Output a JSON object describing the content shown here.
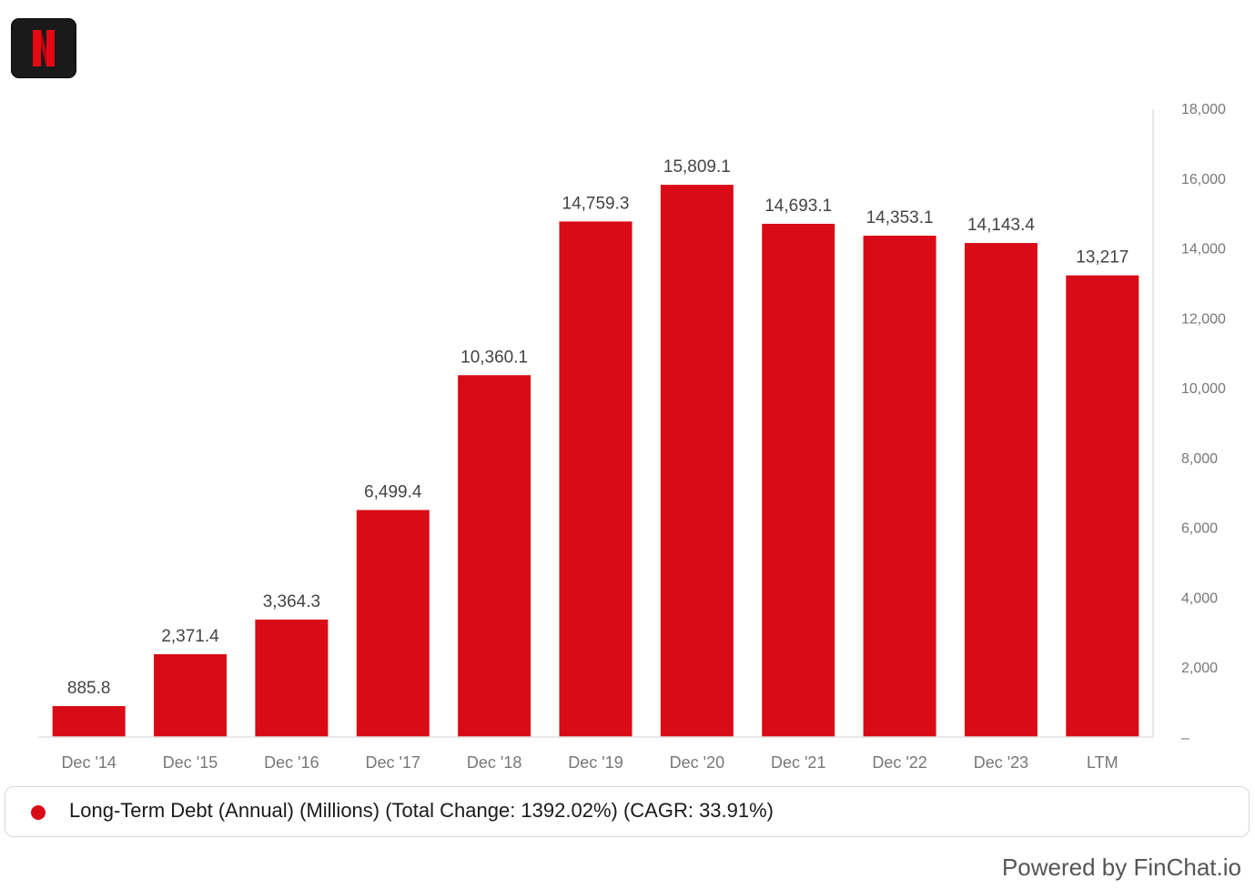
{
  "brand": {
    "logo_icon": "netflix-n-logo-icon",
    "logo_letter": "N",
    "logo_color": "#e50914",
    "logo_bg": "#1a1a1a"
  },
  "chart_data": {
    "type": "bar",
    "categories": [
      "Dec '14",
      "Dec '15",
      "Dec '16",
      "Dec '17",
      "Dec '18",
      "Dec '19",
      "Dec '20",
      "Dec '21",
      "Dec '22",
      "Dec '23",
      "LTM"
    ],
    "series": [
      {
        "name": "Long-Term Debt (Annual) (Millions) (Total Change: 1392.02%) (CAGR: 33.91%)",
        "values": [
          885.8,
          2371.4,
          3364.3,
          6499.4,
          10360.1,
          14759.3,
          15809.1,
          14693.1,
          14353.1,
          14143.4,
          13217
        ],
        "labels": [
          "885.8",
          "2,371.4",
          "3,364.3",
          "6,499.4",
          "10,360.1",
          "14,759.3",
          "15,809.1",
          "14,693.1",
          "14,353.1",
          "14,143.4",
          "13,217"
        ],
        "color": "#d90b16"
      }
    ],
    "y_ticks": [
      0,
      2000,
      4000,
      6000,
      8000,
      10000,
      12000,
      14000,
      16000,
      18000
    ],
    "y_tick_labels": [
      "–",
      "2,000",
      "4,000",
      "6,000",
      "8,000",
      "10,000",
      "12,000",
      "14,000",
      "16,000",
      "18,000"
    ],
    "ylim": [
      0,
      18000
    ],
    "y_axis_side": "right",
    "grid": false,
    "legend_position": "bottom"
  },
  "legend": {
    "label": "Long-Term Debt (Annual) (Millions) (Total Change: 1392.02%) (CAGR: 33.91%)",
    "color": "#d90b16"
  },
  "footer": {
    "powered_by": "Powered by FinChat.io"
  }
}
